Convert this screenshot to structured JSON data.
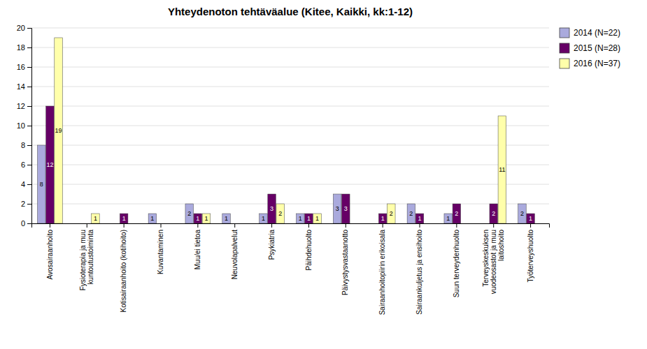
{
  "chart_data": {
    "type": "bar",
    "title": "Yhteydenoton tehtäväalue (Kitee, Kaikki, kk:1-12)",
    "categories": [
      "Avosairaanhoito",
      "Fysioterapia ja muu\nkuntoutustoiminta",
      "Kotisairaanhoito (kotihoito)",
      "Kuvantaminen",
      "Muu/ei tietoa",
      "Neuvolapalvelut",
      "Psykiatria",
      "Päihdehuolto",
      "Päivystysvastaanotto",
      "Sairaanhoitopiirin erikoisala",
      "Sairaankuljetus ja ensihoito",
      "Suun terveydenhuolto",
      "Terveyskeskuksen\nvuodeosastot ja muu\nlaitoshoito",
      "Työterveyshuolto"
    ],
    "series": [
      {
        "name": "2014 (N=22)",
        "color": "#AAAADD",
        "values": [
          8,
          0,
          0,
          1,
          2,
          1,
          1,
          1,
          3,
          0,
          2,
          1,
          0,
          2
        ]
      },
      {
        "name": "2015 (N=28)",
        "color": "#660066",
        "values": [
          12,
          0,
          1,
          0,
          1,
          0,
          3,
          1,
          3,
          1,
          1,
          2,
          2,
          1
        ]
      },
      {
        "name": "2016 (N=37)",
        "color": "#FFFFAA",
        "values": [
          19,
          1,
          0,
          0,
          1,
          0,
          2,
          1,
          0,
          2,
          0,
          0,
          11,
          0
        ]
      }
    ],
    "ylim": [
      0,
      20
    ],
    "yticks": [
      0,
      2,
      4,
      6,
      8,
      10,
      12,
      14,
      16,
      18,
      20
    ],
    "grid": true,
    "legend": "upper right",
    "data_labels": true
  }
}
